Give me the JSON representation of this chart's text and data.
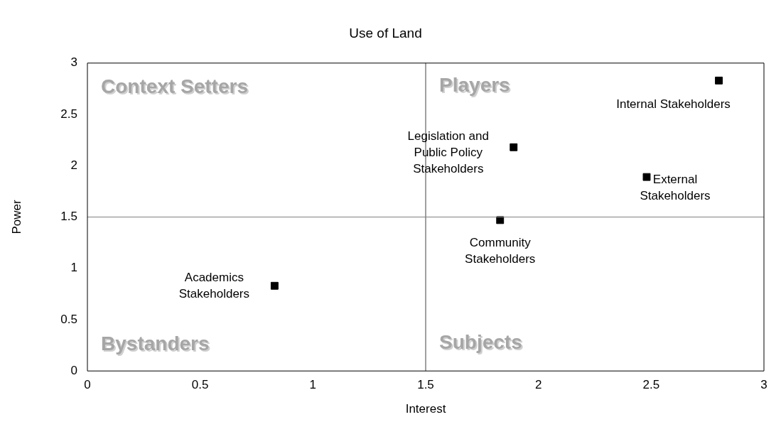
{
  "chart_data": {
    "type": "scatter",
    "title": "Use of Land",
    "xlabel": "Interest",
    "ylabel": "Power",
    "xlim": [
      0,
      3
    ],
    "ylim": [
      0,
      3
    ],
    "xticks": [
      0,
      0.5,
      1,
      1.5,
      2,
      2.5,
      3
    ],
    "yticks": [
      0,
      0.5,
      1,
      1.5,
      2,
      2.5,
      3
    ],
    "grid": false,
    "legend": false,
    "marker": "square",
    "series": [
      {
        "name": "Internal Stakeholders",
        "color": "#000000",
        "x": [
          2.8
        ],
        "values": [
          2.83
        ]
      },
      {
        "name": "Legislation and Public Policy Stakeholders",
        "color": "#000000",
        "x": [
          1.89
        ],
        "values": [
          2.18
        ]
      },
      {
        "name": "External Stakeholders",
        "color": "#000000",
        "x": [
          2.48
        ],
        "values": [
          1.89
        ]
      },
      {
        "name": "Community Stakeholders",
        "color": "#000000",
        "x": [
          1.83
        ],
        "values": [
          1.47
        ]
      },
      {
        "name": "Academics Stakeholders",
        "color": "#000000",
        "x": [
          0.83
        ],
        "values": [
          0.83
        ]
      }
    ],
    "ref_lines": [
      {
        "axis": "x",
        "value": 1.5,
        "color": "#404040"
      },
      {
        "axis": "y",
        "value": 1.5,
        "color": "#808080"
      }
    ],
    "annotations": [
      "Context Setters",
      "Players",
      "Bystanders",
      "Subjects"
    ]
  }
}
